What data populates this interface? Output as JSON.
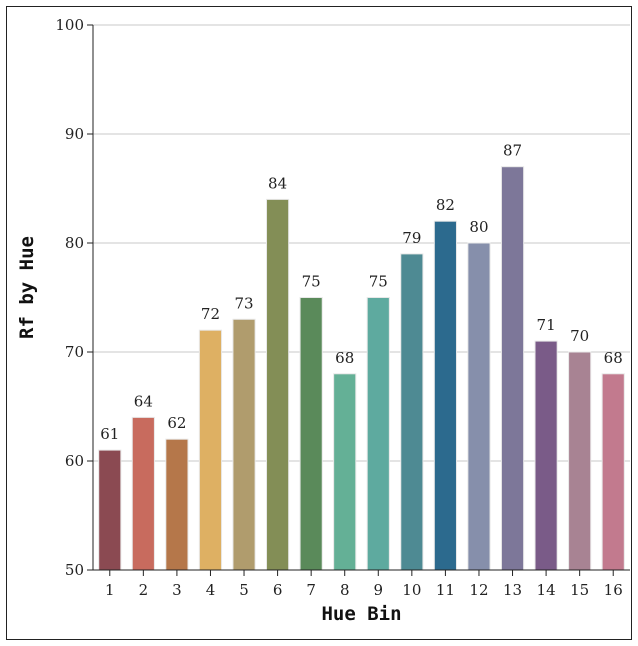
{
  "chart_data": {
    "type": "bar",
    "title": "",
    "xlabel": "Hue Bin",
    "ylabel": "Rf by Hue",
    "ylim": [
      50,
      100
    ],
    "yticks": [
      50,
      60,
      70,
      80,
      90,
      100
    ],
    "grid": true,
    "categories": [
      "1",
      "2",
      "3",
      "4",
      "5",
      "6",
      "7",
      "8",
      "9",
      "10",
      "11",
      "12",
      "13",
      "14",
      "15",
      "16"
    ],
    "values": [
      61,
      64,
      62,
      72,
      73,
      84,
      75,
      68,
      75,
      79,
      82,
      80,
      87,
      71,
      70,
      68
    ],
    "value_labels": [
      "61",
      "64",
      "62",
      "72",
      "73",
      "84",
      "75",
      "68",
      "75",
      "79",
      "82",
      "80",
      "87",
      "71",
      "70",
      "68"
    ],
    "colors": [
      "#8b4a52",
      "#c86b5e",
      "#b5774a",
      "#deb063",
      "#b09c6d",
      "#838e56",
      "#5a8a5a",
      "#64b096",
      "#5eaa9f",
      "#4e8a93",
      "#2c6a8e",
      "#868fab",
      "#7d7799",
      "#7a5b88",
      "#a88393",
      "#c27a8e"
    ]
  }
}
